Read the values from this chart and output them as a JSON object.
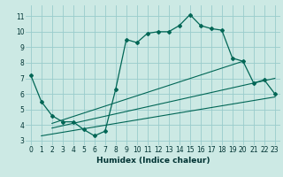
{
  "xlabel": "Humidex (Indice chaleur)",
  "bg_color": "#cce9e4",
  "grid_color": "#99cccc",
  "line_color": "#006655",
  "xlim": [
    -0.5,
    23.5
  ],
  "ylim": [
    2.7,
    11.7
  ],
  "yticks": [
    3,
    4,
    5,
    6,
    7,
    8,
    9,
    10,
    11
  ],
  "xticks": [
    0,
    1,
    2,
    3,
    4,
    5,
    6,
    7,
    8,
    9,
    10,
    11,
    12,
    13,
    14,
    15,
    16,
    17,
    18,
    19,
    20,
    21,
    22,
    23
  ],
  "line1_x": [
    0,
    1,
    2,
    3,
    4,
    5,
    6,
    7,
    8,
    9,
    10,
    11,
    12,
    13,
    14,
    15,
    16,
    17,
    18,
    19,
    20,
    21,
    22,
    23
  ],
  "line1_y": [
    7.2,
    5.5,
    4.6,
    4.2,
    4.2,
    3.7,
    3.3,
    3.6,
    6.3,
    9.5,
    9.3,
    9.9,
    10.0,
    10.0,
    10.4,
    11.1,
    10.4,
    10.2,
    10.1,
    8.3,
    8.1,
    6.7,
    6.9,
    6.0
  ],
  "line2_x": [
    1,
    23
  ],
  "line2_y": [
    3.3,
    5.8
  ],
  "line3_x": [
    2,
    23
  ],
  "line3_y": [
    3.8,
    7.0
  ],
  "line4_x": [
    2,
    20
  ],
  "line4_y": [
    4.1,
    8.1
  ]
}
